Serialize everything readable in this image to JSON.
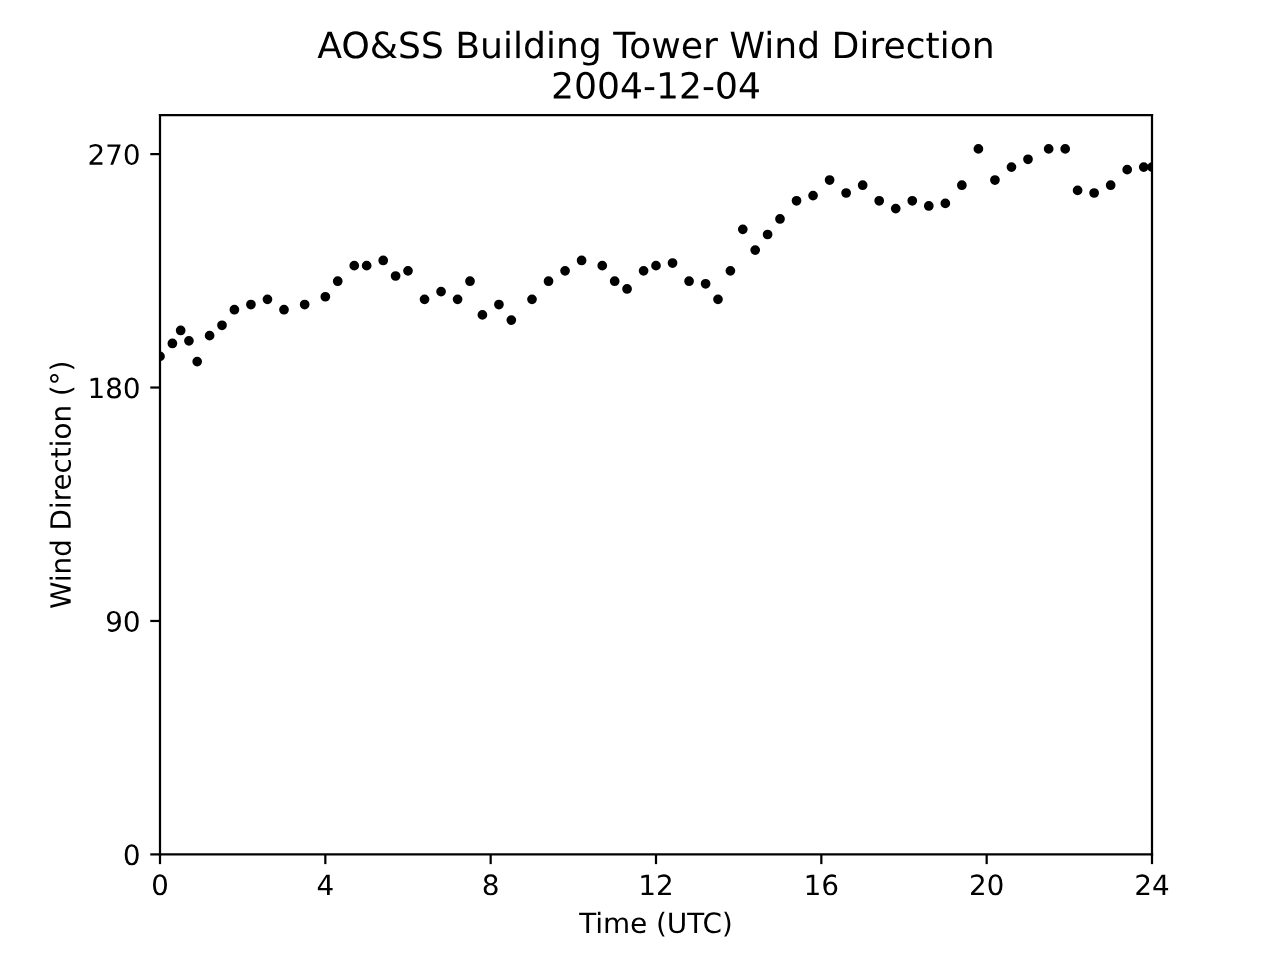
{
  "chart_data": {
    "type": "scatter",
    "title": "AO&SS Building Tower Wind Direction\n2004-12-04",
    "xlabel": "Time (UTC)",
    "ylabel": "Wind Direction (°)",
    "x": [
      0,
      0.3,
      0.5,
      0.7,
      0.9,
      1.2,
      1.5,
      1.8,
      2.2,
      2.6,
      3.0,
      3.5,
      4.0,
      4.3,
      4.7,
      5.0,
      5.4,
      5.7,
      6.0,
      6.4,
      6.8,
      7.2,
      7.5,
      7.8,
      8.2,
      8.5,
      9.0,
      9.4,
      9.8,
      10.2,
      10.7,
      11.0,
      11.3,
      11.7,
      12.0,
      12.4,
      12.8,
      13.2,
      13.5,
      13.8,
      14.1,
      14.4,
      14.7,
      15.0,
      15.4,
      15.8,
      16.2,
      16.6,
      17.0,
      17.4,
      17.8,
      18.2,
      18.6,
      19.0,
      19.4,
      19.8,
      20.2,
      20.6,
      21.0,
      21.5,
      21.9,
      22.2,
      22.6,
      23.0,
      23.4,
      23.8,
      24
    ],
    "series": [
      {
        "color": "#000000",
        "values": [
          192,
          197,
          202,
          198,
          190,
          200,
          204,
          210,
          212,
          214,
          210,
          212,
          215,
          221,
          227,
          227,
          229,
          223,
          225,
          214,
          217,
          214,
          221,
          208,
          212,
          206,
          214,
          221,
          225,
          229,
          227,
          221,
          218,
          225,
          227,
          228,
          221,
          220,
          214,
          225,
          241,
          233,
          239,
          245,
          252,
          254,
          260,
          255,
          258,
          252,
          249,
          252,
          250,
          251,
          258,
          272,
          260,
          265,
          268,
          272,
          272,
          256,
          255,
          258,
          264,
          265,
          265
        ]
      }
    ],
    "xlim": [
      0,
      24
    ],
    "xticks": [
      0,
      4,
      8,
      12,
      16,
      20,
      24
    ],
    "ylim": [
      0,
      285
    ],
    "yticks": [
      0,
      90,
      180,
      270
    ],
    "marker": "circle",
    "grid": false,
    "legend": false
  }
}
